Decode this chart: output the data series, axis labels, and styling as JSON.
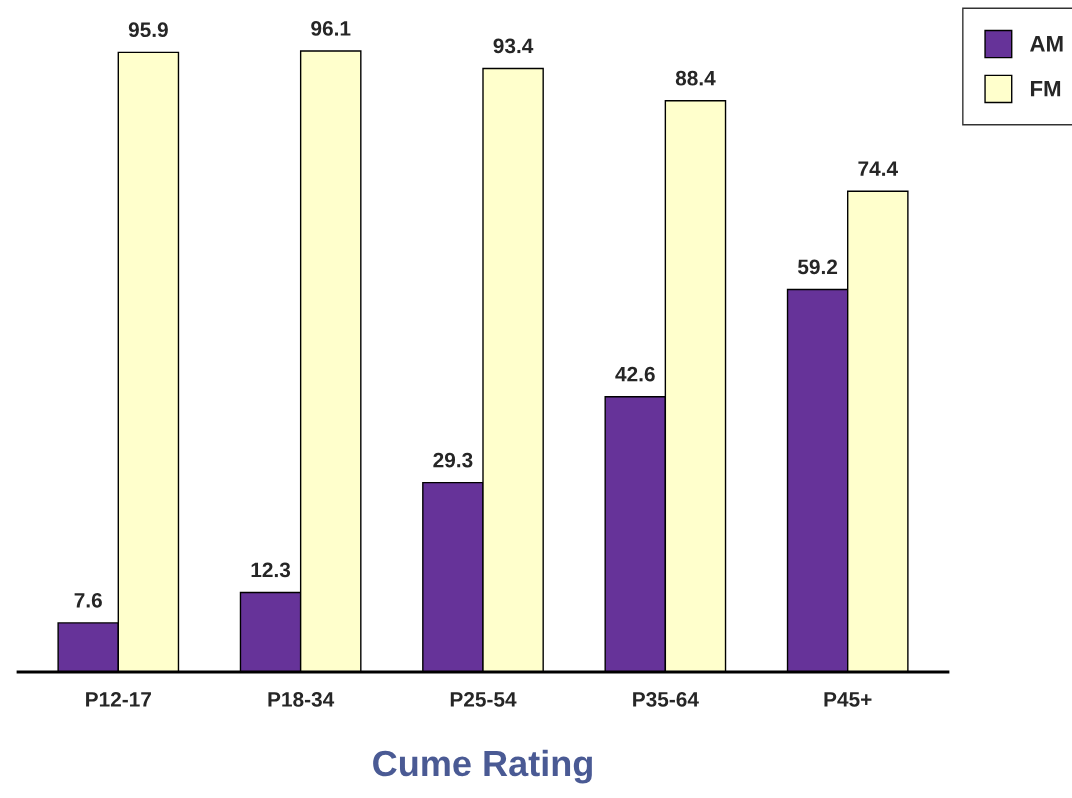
{
  "chart_data": {
    "type": "bar",
    "xlabel": "Cume Rating",
    "categories": [
      "P12-17",
      "P18-34",
      "P25-54",
      "P35-64",
      "P45+"
    ],
    "series": [
      {
        "name": "AM",
        "color": "#663399",
        "values": [
          7.6,
          12.3,
          29.3,
          42.6,
          59.2
        ]
      },
      {
        "name": "FM",
        "color": "#ffffcc",
        "values": [
          95.9,
          96.1,
          93.4,
          88.4,
          74.4
        ]
      }
    ],
    "data_labels": true,
    "legend": "top right",
    "grid": false
  }
}
